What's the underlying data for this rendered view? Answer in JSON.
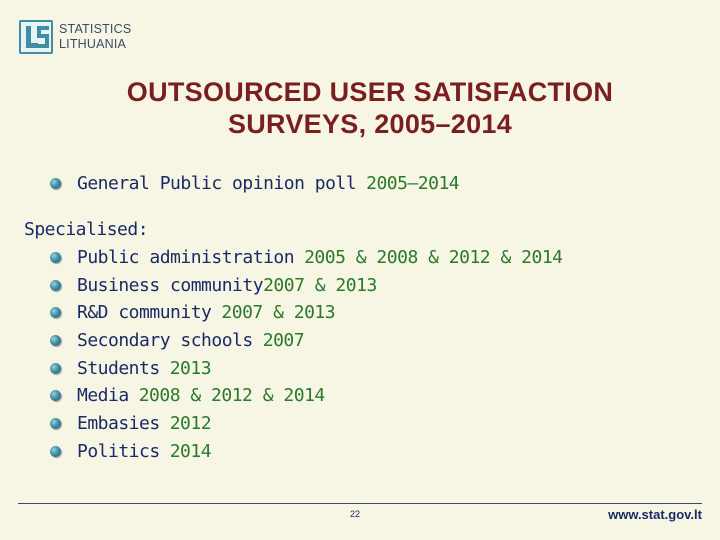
{
  "logo": {
    "line1": "STATISTICS",
    "line2": "LITHUANIA"
  },
  "title": {
    "line1": "OUTSOURCED USER SATISFACTION",
    "line2": "SURVEYS, 2005–2014"
  },
  "general": {
    "label": "General Public opinion poll",
    "years": "2005–2014"
  },
  "specialised": {
    "heading": "Specialised:",
    "items": [
      {
        "label": "Public administration",
        "years": "2005 & 2008 & 2012 & 2014"
      },
      {
        "label": "Business community",
        "years": "2007 & 2013"
      },
      {
        "label": "R&D community",
        "years": "2007 & 2013"
      },
      {
        "label": "Secondary schools",
        "years": "2007"
      },
      {
        "label": "Students",
        "years": "2013"
      },
      {
        "label": "Media",
        "years": "2008 & 2012 & 2014"
      },
      {
        "label": "Embasies",
        "years": "2012"
      },
      {
        "label": "Politics",
        "years": "2014"
      }
    ]
  },
  "footer": {
    "page_number": "22",
    "url": "www.stat.gov.lt"
  },
  "colors": {
    "background": "#f7f6e4",
    "title": "#7a1f1f",
    "text": "#1a2a66",
    "years": "#2a7a2a",
    "accent": "#3e8fa6"
  }
}
